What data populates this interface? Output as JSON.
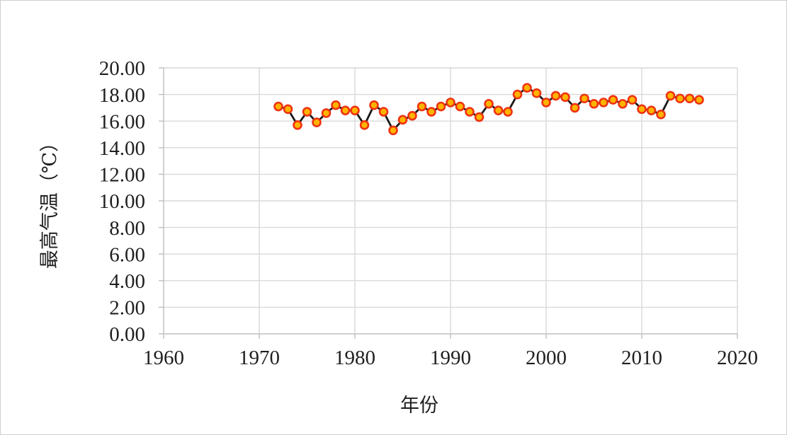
{
  "chart_data": {
    "type": "line",
    "title": "",
    "xlabel": "年份",
    "ylabel": "最高气温（℃）",
    "x": [
      1972,
      1973,
      1974,
      1975,
      1976,
      1977,
      1978,
      1979,
      1980,
      1981,
      1982,
      1983,
      1984,
      1985,
      1986,
      1987,
      1988,
      1989,
      1990,
      1991,
      1992,
      1993,
      1994,
      1995,
      1996,
      1997,
      1998,
      1999,
      2000,
      2001,
      2002,
      2003,
      2004,
      2005,
      2006,
      2007,
      2008,
      2009,
      2010,
      2011,
      2012,
      2013,
      2014,
      2015,
      2016
    ],
    "values": [
      17.1,
      16.9,
      15.7,
      16.7,
      15.9,
      16.6,
      17.2,
      16.8,
      16.8,
      15.7,
      17.2,
      16.7,
      15.3,
      16.1,
      16.4,
      17.1,
      16.7,
      17.1,
      17.4,
      17.1,
      16.7,
      16.3,
      17.3,
      16.8,
      16.7,
      18.0,
      18.5,
      18.1,
      17.4,
      17.9,
      17.8,
      17.0,
      17.7,
      17.3,
      17.4,
      17.6,
      17.3,
      17.6,
      16.9,
      16.8,
      16.5,
      17.9,
      17.7,
      17.7,
      17.6
    ],
    "xlim": [
      1960,
      2020
    ],
    "ylim": [
      0,
      20
    ],
    "xtick_labels": [
      "1960",
      "1970",
      "1980",
      "1990",
      "2000",
      "2010",
      "2020"
    ],
    "ytick_labels": [
      "0.00",
      "2.00",
      "4.00",
      "6.00",
      "8.00",
      "10.00",
      "12.00",
      "14.00",
      "16.00",
      "18.00",
      "20.00"
    ],
    "grid": true,
    "legend": "none",
    "colors": {
      "line": "#1a1a1a",
      "marker_fill": "#ffb400",
      "marker_stroke": "#ee3311",
      "gridline": "#d9d9d9",
      "axis_line": "#bfbfbf",
      "text": "#1f1f1f"
    }
  }
}
